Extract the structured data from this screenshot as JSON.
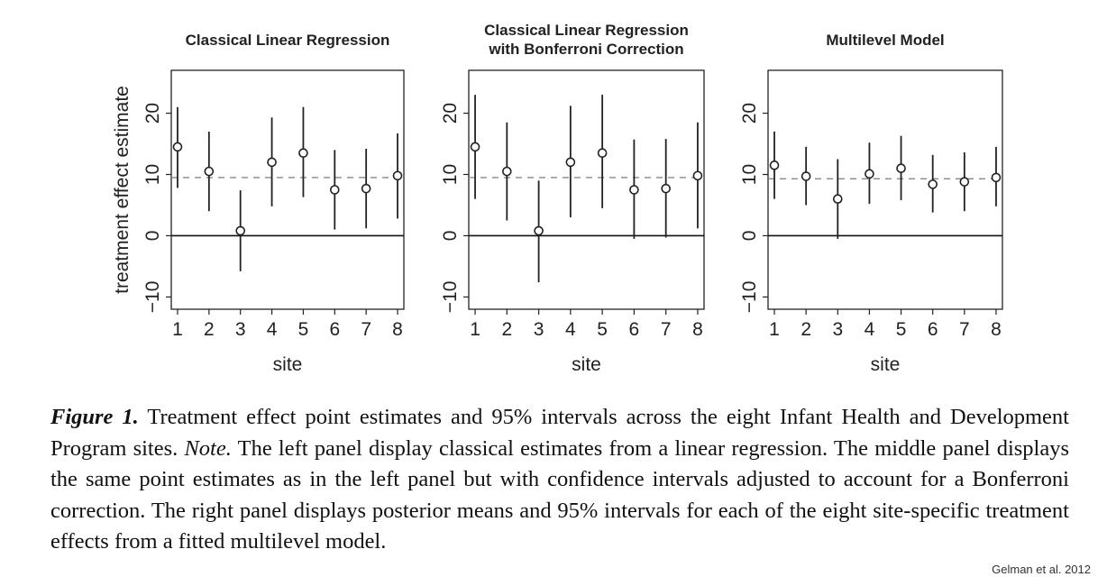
{
  "chart_data": [
    {
      "type": "scatter",
      "title": "Classical Linear Regression",
      "xlabel": "site",
      "ylabel": "treatment effect estimate",
      "x": [
        1,
        2,
        3,
        4,
        5,
        6,
        7,
        8
      ],
      "estimates": [
        14.5,
        10.5,
        0.8,
        12.0,
        13.5,
        7.5,
        7.7,
        9.8
      ],
      "interval_lower": [
        7.8,
        4.0,
        -5.8,
        4.8,
        6.3,
        1.0,
        1.2,
        2.8
      ],
      "interval_upper": [
        21.0,
        17.0,
        7.4,
        19.3,
        21.0,
        14.0,
        14.2,
        16.7
      ],
      "reference_line": 9.5,
      "zero_line": 0,
      "xlim": [
        0.8,
        8.2
      ],
      "ylim": [
        -12,
        27
      ],
      "yticks": [
        -10,
        0,
        10,
        20
      ],
      "xticks": [
        1,
        2,
        3,
        4,
        5,
        6,
        7,
        8
      ]
    },
    {
      "type": "scatter",
      "title": "Classical Linear Regression\nwith Bonferroni Correction",
      "xlabel": "site",
      "ylabel": "",
      "x": [
        1,
        2,
        3,
        4,
        5,
        6,
        7,
        8
      ],
      "estimates": [
        14.5,
        10.5,
        0.8,
        12.0,
        13.5,
        7.5,
        7.7,
        9.8
      ],
      "interval_lower": [
        6.0,
        2.5,
        -7.6,
        3.0,
        4.5,
        -0.5,
        -0.3,
        1.2
      ],
      "interval_upper": [
        23.0,
        18.5,
        9.0,
        21.2,
        23.0,
        15.7,
        15.8,
        18.5
      ],
      "reference_line": 9.5,
      "zero_line": 0,
      "xlim": [
        0.8,
        8.2
      ],
      "ylim": [
        -12,
        27
      ],
      "yticks": [
        -10,
        0,
        10,
        20
      ],
      "xticks": [
        1,
        2,
        3,
        4,
        5,
        6,
        7,
        8
      ]
    },
    {
      "type": "scatter",
      "title": "Multilevel Model",
      "xlabel": "site",
      "ylabel": "",
      "x": [
        1,
        2,
        3,
        4,
        5,
        6,
        7,
        8
      ],
      "estimates": [
        11.5,
        9.7,
        6.0,
        10.1,
        11.0,
        8.4,
        8.8,
        9.5
      ],
      "interval_lower": [
        6.0,
        5.0,
        -0.5,
        5.2,
        5.8,
        3.8,
        4.0,
        4.8
      ],
      "interval_upper": [
        17.0,
        14.5,
        12.5,
        15.2,
        16.3,
        13.2,
        13.6,
        14.5
      ],
      "reference_line": 9.3,
      "zero_line": 0,
      "xlim": [
        0.8,
        8.2
      ],
      "ylim": [
        -12,
        27
      ],
      "yticks": [
        -10,
        0,
        10,
        20
      ],
      "xticks": [
        1,
        2,
        3,
        4,
        5,
        6,
        7,
        8
      ]
    }
  ],
  "caption": {
    "lead": "Figure 1.",
    "text1": " Treatment effect point estimates and 95% intervals across the eight Infant Health and Development Program sites. ",
    "note_label": "Note.",
    "text2": " The left panel display classical estimates from a linear regression. The middle panel displays the same point estimates as in the left panel but with confidence intervals adjusted to account for a Bonferroni correction. The right panel displays posterior means and 95% intervals for each of the eight site-specific treatment effects from a fitted multilevel model."
  },
  "credit": "Gelman et al. 2012"
}
